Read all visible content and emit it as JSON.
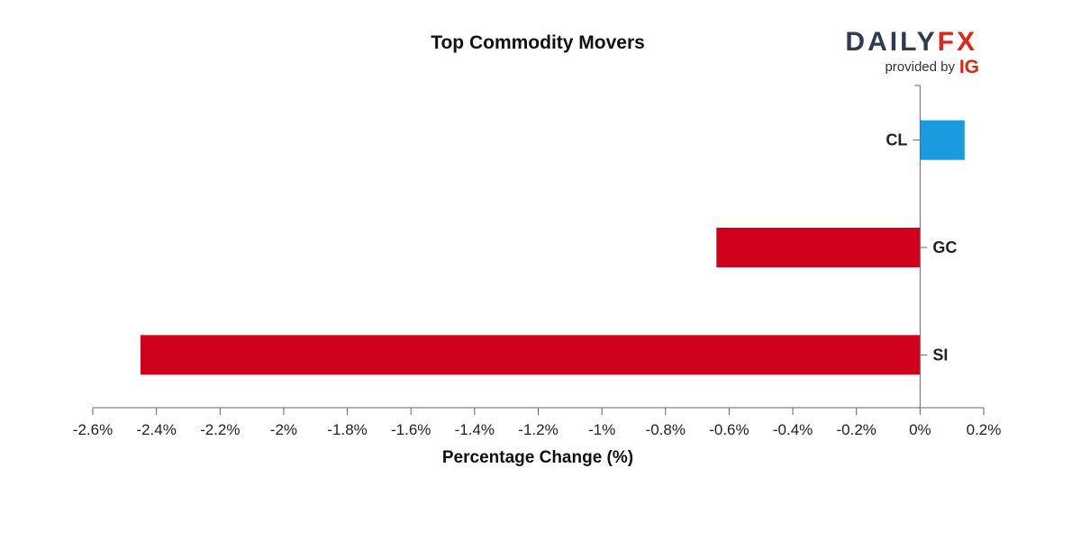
{
  "logo": {
    "daily": "DAILY",
    "fx": "FX",
    "provided_by": "provided by",
    "ig": "IG"
  },
  "colors": {
    "positive": "#1a9be0",
    "negative": "#d0021b",
    "axis": "#666666",
    "brand_dark": "#2e3a4f",
    "brand_red": "#e2231a"
  },
  "chart_data": {
    "type": "bar",
    "orientation": "horizontal",
    "title": "Top Commodity Movers",
    "xlabel": "Percentage Change (%)",
    "ylabel": "",
    "categories": [
      "CL",
      "GC",
      "SI"
    ],
    "values": [
      0.14,
      -0.64,
      -2.45
    ],
    "xlim": [
      -2.6,
      0.2
    ],
    "xticks": [
      -2.6,
      -2.4,
      -2.2,
      -2.0,
      -1.8,
      -1.6,
      -1.4,
      -1.2,
      -1.0,
      -0.8,
      -0.6,
      -0.4,
      -0.2,
      0,
      0.2
    ],
    "xtick_labels": [
      "-2.6%",
      "-2.4%",
      "-2.2%",
      "-2%",
      "-1.8%",
      "-1.6%",
      "-1.4%",
      "-1.2%",
      "-1%",
      "-0.8%",
      "-0.6%",
      "-0.4%",
      "-0.2%",
      "0%",
      "0.2%"
    ],
    "grid": false,
    "legend": "none"
  }
}
